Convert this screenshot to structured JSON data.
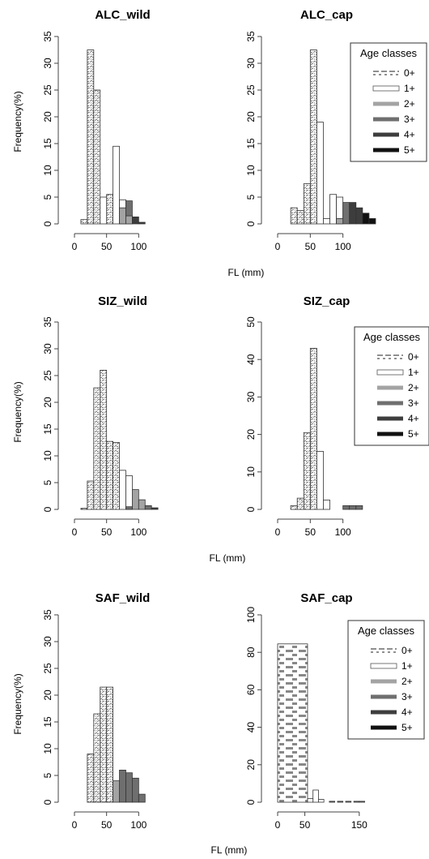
{
  "figure": {
    "xlabel": "FL (mm)",
    "ylabel": "Frequency(%)"
  },
  "legend": {
    "title": "Age classes",
    "items": [
      "0+",
      "1+",
      "2+",
      "3+",
      "4+",
      "5+"
    ]
  },
  "colors": {
    "age_0": "#cfcfcf",
    "age_1": "#ffffff",
    "age_2": "#a3a3a3",
    "age_3": "#6f6f6f",
    "age_4": "#3d3d3d",
    "age_5": "#111111",
    "axis": "#444444"
  },
  "chart_data": [
    {
      "type": "bar",
      "title": "ALC_wild",
      "xlim": [
        0,
        150
      ],
      "ylim": [
        0,
        35
      ],
      "xticks": [
        0,
        50,
        100
      ],
      "yticks": [
        0,
        5,
        10,
        15,
        20,
        25,
        30,
        35
      ],
      "bin_width": 10,
      "legend": false,
      "bins": [
        {
          "x0": 10,
          "value": 0.8,
          "age": "0+"
        },
        {
          "x0": 20,
          "value": 32.5,
          "age": "0+"
        },
        {
          "x0": 30,
          "value": 25.0,
          "age": "0+"
        },
        {
          "x0": 40,
          "value": 5.0,
          "age": "1+"
        },
        {
          "x0": 50,
          "value": 5.5,
          "age": "0+"
        },
        {
          "x0": 60,
          "value": 14.5,
          "age": "1+"
        },
        {
          "x0": 70,
          "value": 4.5,
          "age": "1+"
        },
        {
          "x0": 70,
          "value": 3.0,
          "age": "2+"
        },
        {
          "x0": 80,
          "value": 4.3,
          "age": "3+"
        },
        {
          "x0": 80,
          "value": 1.5,
          "age": "2+"
        },
        {
          "x0": 90,
          "value": 1.3,
          "age": "4+"
        },
        {
          "x0": 100,
          "value": 0.3,
          "age": "4+"
        }
      ]
    },
    {
      "type": "bar",
      "title": "ALC_cap",
      "xlim": [
        0,
        150
      ],
      "ylim": [
        0,
        35
      ],
      "xticks": [
        0,
        50,
        100
      ],
      "yticks": [
        0,
        5,
        10,
        15,
        20,
        25,
        30,
        35
      ],
      "bin_width": 10,
      "legend": true,
      "bins": [
        {
          "x0": 20,
          "value": 3.0,
          "age": "0+"
        },
        {
          "x0": 30,
          "value": 2.5,
          "age": "0+"
        },
        {
          "x0": 40,
          "value": 7.5,
          "age": "0+"
        },
        {
          "x0": 50,
          "value": 32.5,
          "age": "0+"
        },
        {
          "x0": 60,
          "value": 19.0,
          "age": "1+"
        },
        {
          "x0": 70,
          "value": 1.0,
          "age": "1+"
        },
        {
          "x0": 80,
          "value": 5.5,
          "age": "1+"
        },
        {
          "x0": 90,
          "value": 5.0,
          "age": "1+"
        },
        {
          "x0": 90,
          "value": 1.0,
          "age": "2+"
        },
        {
          "x0": 100,
          "value": 4.0,
          "age": "3+"
        },
        {
          "x0": 110,
          "value": 4.0,
          "age": "4+"
        },
        {
          "x0": 120,
          "value": 3.0,
          "age": "4+"
        },
        {
          "x0": 130,
          "value": 2.0,
          "age": "5+"
        },
        {
          "x0": 140,
          "value": 1.0,
          "age": "5+"
        }
      ]
    },
    {
      "type": "bar",
      "title": "SIZ_wild",
      "xlim": [
        0,
        150
      ],
      "ylim": [
        0,
        35
      ],
      "xticks": [
        0,
        50,
        100
      ],
      "yticks": [
        0,
        5,
        10,
        15,
        20,
        25,
        30,
        35
      ],
      "bin_width": 10,
      "legend": false,
      "bins": [
        {
          "x0": 10,
          "value": 0.2,
          "age": "0+"
        },
        {
          "x0": 20,
          "value": 5.3,
          "age": "0+"
        },
        {
          "x0": 30,
          "value": 22.7,
          "age": "0+"
        },
        {
          "x0": 40,
          "value": 26.0,
          "age": "0+"
        },
        {
          "x0": 50,
          "value": 12.7,
          "age": "0+"
        },
        {
          "x0": 60,
          "value": 12.5,
          "age": "0+"
        },
        {
          "x0": 70,
          "value": 7.3,
          "age": "1+"
        },
        {
          "x0": 80,
          "value": 6.3,
          "age": "1+"
        },
        {
          "x0": 80,
          "value": 0.5,
          "age": "3+"
        },
        {
          "x0": 90,
          "value": 3.7,
          "age": "2+"
        },
        {
          "x0": 100,
          "value": 1.8,
          "age": "2+"
        },
        {
          "x0": 110,
          "value": 0.7,
          "age": "3+"
        },
        {
          "x0": 120,
          "value": 0.3,
          "age": "4+"
        }
      ]
    },
    {
      "type": "bar",
      "title": "SIZ_cap",
      "xlim": [
        0,
        150
      ],
      "ylim": [
        0,
        50
      ],
      "xticks": [
        0,
        50,
        100
      ],
      "yticks": [
        0,
        10,
        20,
        30,
        40,
        50
      ],
      "bin_width": 10,
      "legend": true,
      "bins": [
        {
          "x0": 20,
          "value": 1.0,
          "age": "0+"
        },
        {
          "x0": 30,
          "value": 3.0,
          "age": "0+"
        },
        {
          "x0": 40,
          "value": 20.5,
          "age": "0+"
        },
        {
          "x0": 50,
          "value": 43.0,
          "age": "0+"
        },
        {
          "x0": 60,
          "value": 15.5,
          "age": "1+"
        },
        {
          "x0": 70,
          "value": 2.5,
          "age": "1+"
        },
        {
          "x0": 100,
          "value": 1.0,
          "age": "3+"
        },
        {
          "x0": 110,
          "value": 1.0,
          "age": "3+"
        },
        {
          "x0": 120,
          "value": 1.0,
          "age": "3+"
        }
      ]
    },
    {
      "type": "bar",
      "title": "SAF_wild",
      "xlim": [
        0,
        150
      ],
      "ylim": [
        0,
        35
      ],
      "xticks": [
        0,
        50,
        100
      ],
      "yticks": [
        0,
        5,
        10,
        15,
        20,
        25,
        30,
        35
      ],
      "bin_width": 10,
      "legend": false,
      "bins": [
        {
          "x0": 20,
          "value": 9.0,
          "age": "0+"
        },
        {
          "x0": 30,
          "value": 16.5,
          "age": "0+"
        },
        {
          "x0": 40,
          "value": 21.5,
          "age": "0+"
        },
        {
          "x0": 50,
          "value": 21.5,
          "age": "0+"
        },
        {
          "x0": 60,
          "value": 4.0,
          "age": "2+"
        },
        {
          "x0": 70,
          "value": 6.0,
          "age": "3+"
        },
        {
          "x0": 80,
          "value": 5.5,
          "age": "3+"
        },
        {
          "x0": 90,
          "value": 4.5,
          "age": "3+"
        },
        {
          "x0": 100,
          "value": 1.5,
          "age": "3+"
        }
      ]
    },
    {
      "type": "bar",
      "title": "SAF_cap",
      "xlim": [
        0,
        180
      ],
      "ylim": [
        0,
        100
      ],
      "xticks": [
        0,
        50,
        150
      ],
      "yticks": [
        0,
        20,
        40,
        60,
        80,
        100
      ],
      "bin_width": 10,
      "legend": true,
      "bins": [
        {
          "x0": 0,
          "value": 84.5,
          "age": "0+",
          "width": 55
        },
        {
          "x0": 55,
          "value": 2.0,
          "age": "1+"
        },
        {
          "x0": 65,
          "value": 6.5,
          "age": "1+"
        },
        {
          "x0": 75,
          "value": 1.5,
          "age": "1+"
        },
        {
          "x0": 95,
          "value": 0.5,
          "age": "3+"
        },
        {
          "x0": 110,
          "value": 0.5,
          "age": "3+"
        },
        {
          "x0": 125,
          "value": 0.5,
          "age": "3+"
        },
        {
          "x0": 140,
          "value": 0.5,
          "age": "3+"
        },
        {
          "x0": 150,
          "value": 0.5,
          "age": "3+"
        }
      ]
    }
  ]
}
